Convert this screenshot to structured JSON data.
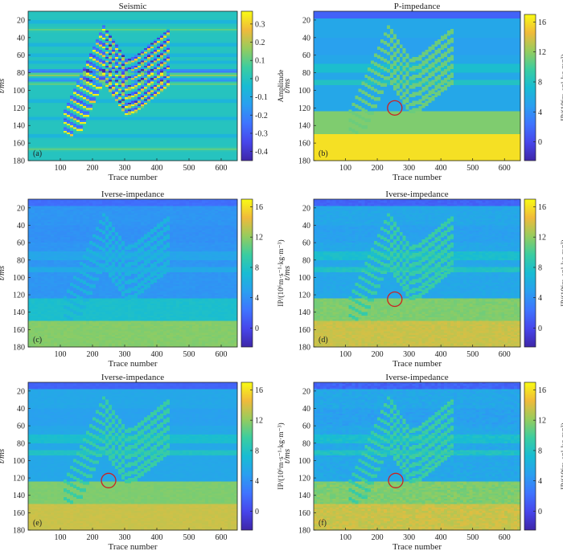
{
  "figure": {
    "x_axis_label": "Trace number",
    "y_axis_label": "t/ms",
    "x_ticks": [
      100,
      200,
      300,
      400,
      500,
      600
    ],
    "y_ticks": [
      20,
      40,
      60,
      80,
      100,
      120,
      140,
      160,
      180
    ]
  },
  "chart_data": [
    {
      "type": "heatmap",
      "panel": "(a)",
      "title": "Seismic",
      "xlabel": "Trace number",
      "ylabel": "t/ms",
      "xlim": [
        0,
        650
      ],
      "ylim": [
        180,
        10
      ],
      "colorbar": {
        "label": "Amplitude",
        "range": [
          -0.45,
          0.37
        ],
        "ticks": [
          "0.3",
          "0.2",
          "0.1",
          "0",
          "-0.1",
          "-0.2",
          "-0.3",
          "-0.4"
        ],
        "tick_values": [
          0.3,
          0.2,
          0.1,
          0,
          -0.1,
          -0.2,
          -0.3,
          -0.4
        ],
        "colormap": "parula"
      },
      "annotation": null
    },
    {
      "type": "heatmap",
      "panel": "(b)",
      "title": "P-impedance",
      "xlabel": "Trace number",
      "ylabel": "t/ms",
      "xlim": [
        0,
        650
      ],
      "ylim": [
        180,
        10
      ],
      "colorbar": {
        "label": "IP/(10⁶m·s⁻¹·kg·m⁻³)",
        "range": [
          -2.5,
          17
        ],
        "ticks": [
          "16",
          "12",
          "8",
          "4",
          "0"
        ],
        "tick_values": [
          16,
          12,
          8,
          4,
          0
        ],
        "colormap": "parula"
      },
      "annotation": {
        "shape": "circle",
        "trace": 255,
        "time_ms": 120,
        "color": "#cc2222"
      }
    },
    {
      "type": "heatmap",
      "panel": "(c)",
      "title": "Iverse-impedance",
      "xlabel": "Trace number",
      "ylabel": "t/ms",
      "xlim": [
        0,
        650
      ],
      "ylim": [
        180,
        10
      ],
      "colorbar": {
        "label": "IP/(10⁶m·s⁻¹·kg·m⁻³)",
        "range": [
          -2.5,
          17
        ],
        "ticks": [
          "16",
          "12",
          "8",
          "4",
          "0"
        ],
        "tick_values": [
          16,
          12,
          8,
          4,
          0
        ],
        "colormap": "parula"
      },
      "annotation": null
    },
    {
      "type": "heatmap",
      "panel": "(d)",
      "title": "Iverse-impedance",
      "xlabel": "Trace number",
      "ylabel": "t/ms",
      "xlim": [
        0,
        650
      ],
      "ylim": [
        180,
        10
      ],
      "colorbar": {
        "label": "IP/(10⁶m·s⁻¹·kg·m⁻³)",
        "range": [
          -2.5,
          17
        ],
        "ticks": [
          "16",
          "12",
          "8",
          "4",
          "0"
        ],
        "tick_values": [
          16,
          12,
          8,
          4,
          0
        ],
        "colormap": "parula"
      },
      "annotation": {
        "shape": "circle",
        "trace": 255,
        "time_ms": 125,
        "color": "#cc2222"
      }
    },
    {
      "type": "heatmap",
      "panel": "(e)",
      "title": "Iverse-impedance",
      "xlabel": "Trace number",
      "ylabel": "t/ms",
      "xlim": [
        0,
        650
      ],
      "ylim": [
        180,
        10
      ],
      "colorbar": {
        "label": "IP/(10⁶m·s⁻¹·kg·m⁻³)",
        "range": [
          -2.5,
          17
        ],
        "ticks": [
          "16",
          "12",
          "8",
          "4",
          "0"
        ],
        "tick_values": [
          16,
          12,
          8,
          4,
          0
        ],
        "colormap": "parula"
      },
      "annotation": {
        "shape": "circle",
        "trace": 250,
        "time_ms": 123,
        "color": "#cc2222"
      }
    },
    {
      "type": "heatmap",
      "panel": "(f)",
      "title": "Iverse-impedance",
      "xlabel": "Trace number",
      "ylabel": "t/ms",
      "xlim": [
        0,
        650
      ],
      "ylim": [
        180,
        10
      ],
      "colorbar": {
        "label": "IP/(10⁶m·s⁻¹·kg·m⁻³)",
        "range": [
          -2.5,
          17
        ],
        "ticks": [
          "16",
          "12",
          "8",
          "4",
          "0"
        ],
        "tick_values": [
          16,
          12,
          8,
          4,
          0
        ],
        "colormap": "parula"
      },
      "annotation": {
        "shape": "circle",
        "trace": 258,
        "time_ms": 123,
        "color": "#cc2222"
      }
    }
  ]
}
